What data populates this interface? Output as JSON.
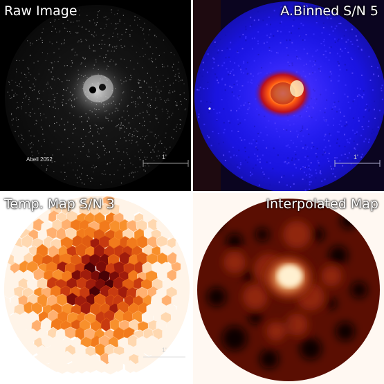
{
  "panels": {
    "raw": {
      "title": "Raw Image",
      "source_label": "Abell 2052",
      "scale_label": "1'"
    },
    "binned": {
      "title": "A.Binned S/N 5",
      "scale_label": "1'"
    },
    "temp": {
      "title": "Temp. Map S/N 3",
      "scale_label": "1'"
    },
    "interp": {
      "title": "Interpolated Map"
    }
  },
  "colors": {
    "binned_background": "#1a14e0",
    "temp_hot": "#fff4e8",
    "temp_mid": "#f27a1c",
    "temp_cold": "#3a0206",
    "interp_dark": "#0c0000",
    "interp_bright": "#fff3d6"
  }
}
